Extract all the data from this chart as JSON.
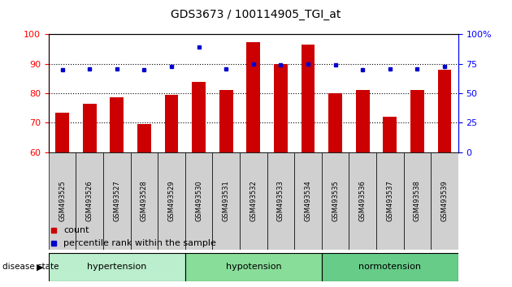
{
  "title": "GDS3673 / 100114905_TGI_at",
  "samples": [
    "GSM493525",
    "GSM493526",
    "GSM493527",
    "GSM493528",
    "GSM493529",
    "GSM493530",
    "GSM493531",
    "GSM493532",
    "GSM493533",
    "GSM493534",
    "GSM493535",
    "GSM493536",
    "GSM493537",
    "GSM493538",
    "GSM493539"
  ],
  "count_values": [
    73.5,
    76.5,
    78.5,
    69.5,
    79.5,
    84.0,
    81.0,
    97.5,
    90.0,
    96.5,
    80.0,
    81.0,
    72.0,
    81.0,
    88.0
  ],
  "percentile_values": [
    70,
    71,
    71,
    70,
    73,
    89,
    71,
    75,
    74,
    75,
    74,
    70,
    71,
    71,
    73
  ],
  "bar_color": "#cc0000",
  "dot_color": "#0000cc",
  "ylim_left": [
    60,
    100
  ],
  "ylim_right": [
    0,
    100
  ],
  "yticks_left": [
    60,
    70,
    80,
    90,
    100
  ],
  "yticks_right": [
    0,
    25,
    50,
    75,
    100
  ],
  "ytick_labels_right": [
    "0",
    "25",
    "50",
    "75",
    "100%"
  ],
  "grid_values": [
    70,
    80,
    90
  ],
  "groups": [
    {
      "label": "hypertension",
      "start": 0,
      "end": 5,
      "color": "#bbeecc"
    },
    {
      "label": "hypotension",
      "start": 5,
      "end": 10,
      "color": "#88dd99"
    },
    {
      "label": "normotension",
      "start": 10,
      "end": 15,
      "color": "#66cc88"
    }
  ],
  "disease_state_label": "disease state",
  "legend_items": [
    {
      "label": "count",
      "color": "#cc0000"
    },
    {
      "label": "percentile rank within the sample",
      "color": "#0000cc"
    }
  ],
  "tick_area_color": "#d0d0d0",
  "bar_width": 0.5
}
